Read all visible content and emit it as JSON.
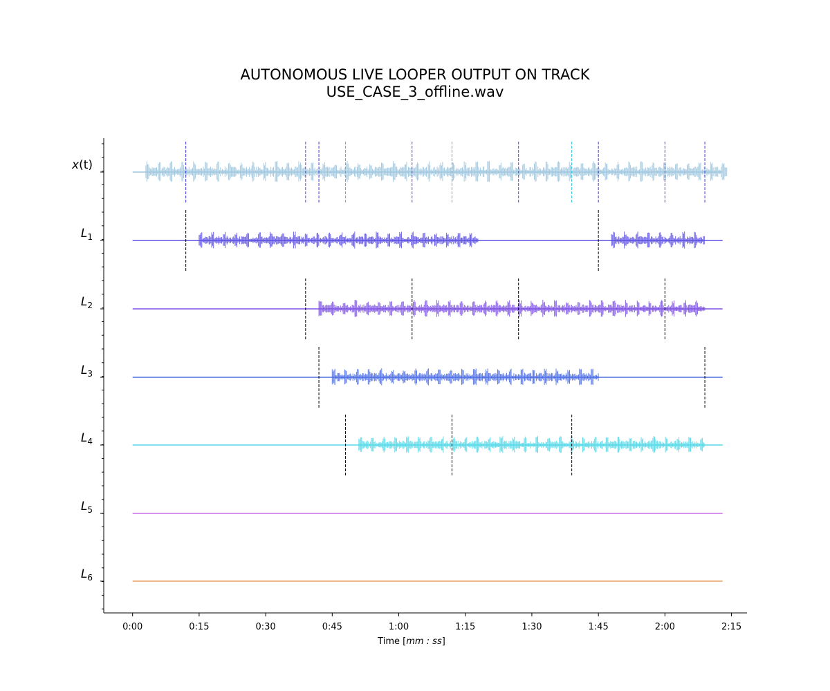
{
  "title": {
    "line1": "AUTONOMOUS LIVE LOOPER OUTPUT ON TRACK",
    "line2": "USE_CASE_3_offline.wav"
  },
  "chart_data": {
    "type": "line",
    "title": "AUTONOMOUS LIVE LOOPER OUTPUT ON TRACK USE_CASE_3_offline.wav",
    "xlabel": "Time [mm : ss]",
    "ylabel": "",
    "x_unit": "seconds",
    "xlim": [
      -6.5,
      138.5
    ],
    "x_ticks": [
      0,
      15,
      30,
      45,
      60,
      75,
      90,
      105,
      120,
      135
    ],
    "x_tick_labels": [
      "0:00",
      "0:15",
      "0:30",
      "0:45",
      "1:00",
      "1:15",
      "1:30",
      "1:45",
      "2:00",
      "2:15"
    ],
    "grid": false,
    "legend": "none",
    "tracks": [
      {
        "label_base": "x",
        "label_sub": "",
        "label_suffix": "(t)",
        "color": "#9fc6df",
        "active": [
          [
            3,
            134
          ]
        ],
        "markers": [
          {
            "t": 12.0,
            "color": "#3b35d8"
          },
          {
            "t": 39.0,
            "color": "#6a3fd6"
          },
          {
            "t": 42.0,
            "color": "#3b35d8"
          },
          {
            "t": 48.0,
            "color": "#2ec4dc"
          },
          {
            "t": 63.0,
            "color": "#6a3fd6"
          },
          {
            "t": 72.0,
            "color": "#2ec4dc"
          },
          {
            "t": 87.0,
            "color": "#6a3fd6"
          },
          {
            "t": 99.0,
            "color": "#2ec4dc"
          },
          {
            "t": 105.0,
            "color": "#3b35d8"
          },
          {
            "t": 120.0,
            "color": "#6a3fd6"
          },
          {
            "t": 129.0,
            "color": "#3b35d8"
          }
        ]
      },
      {
        "label_base": "L",
        "label_sub": "1",
        "label_suffix": "",
        "color": "#5b4fe0",
        "active": [
          [
            15,
            78
          ],
          [
            108,
            129
          ]
        ],
        "markers": [
          {
            "t": 12.0,
            "color": "#000000"
          },
          {
            "t": 105.0,
            "color": "#000000"
          }
        ]
      },
      {
        "label_base": "L",
        "label_sub": "2",
        "label_suffix": "",
        "color": "#7e52e3",
        "active": [
          [
            42,
            129
          ]
        ],
        "markers": [
          {
            "t": 39.0,
            "color": "#000000"
          },
          {
            "t": 63.0,
            "color": "#000000"
          },
          {
            "t": 87.0,
            "color": "#000000"
          },
          {
            "t": 120.0,
            "color": "#000000"
          }
        ]
      },
      {
        "label_base": "L",
        "label_sub": "3",
        "label_suffix": "",
        "color": "#4d6de3",
        "active": [
          [
            45,
            105
          ]
        ],
        "markers": [
          {
            "t": 42.0,
            "color": "#000000"
          },
          {
            "t": 129.0,
            "color": "#000000"
          }
        ]
      },
      {
        "label_base": "L",
        "label_sub": "4",
        "label_suffix": "",
        "color": "#55d8e8",
        "active": [
          [
            51,
            129
          ]
        ],
        "markers": [
          {
            "t": 48.0,
            "color": "#000000"
          },
          {
            "t": 72.0,
            "color": "#000000"
          },
          {
            "t": 99.0,
            "color": "#000000"
          }
        ]
      },
      {
        "label_base": "L",
        "label_sub": "5",
        "label_suffix": "",
        "color": "#c86ee8",
        "active": [],
        "markers": []
      },
      {
        "label_base": "L",
        "label_sub": "6",
        "label_suffix": "",
        "color": "#e8a060",
        "active": [],
        "markers": []
      }
    ]
  }
}
